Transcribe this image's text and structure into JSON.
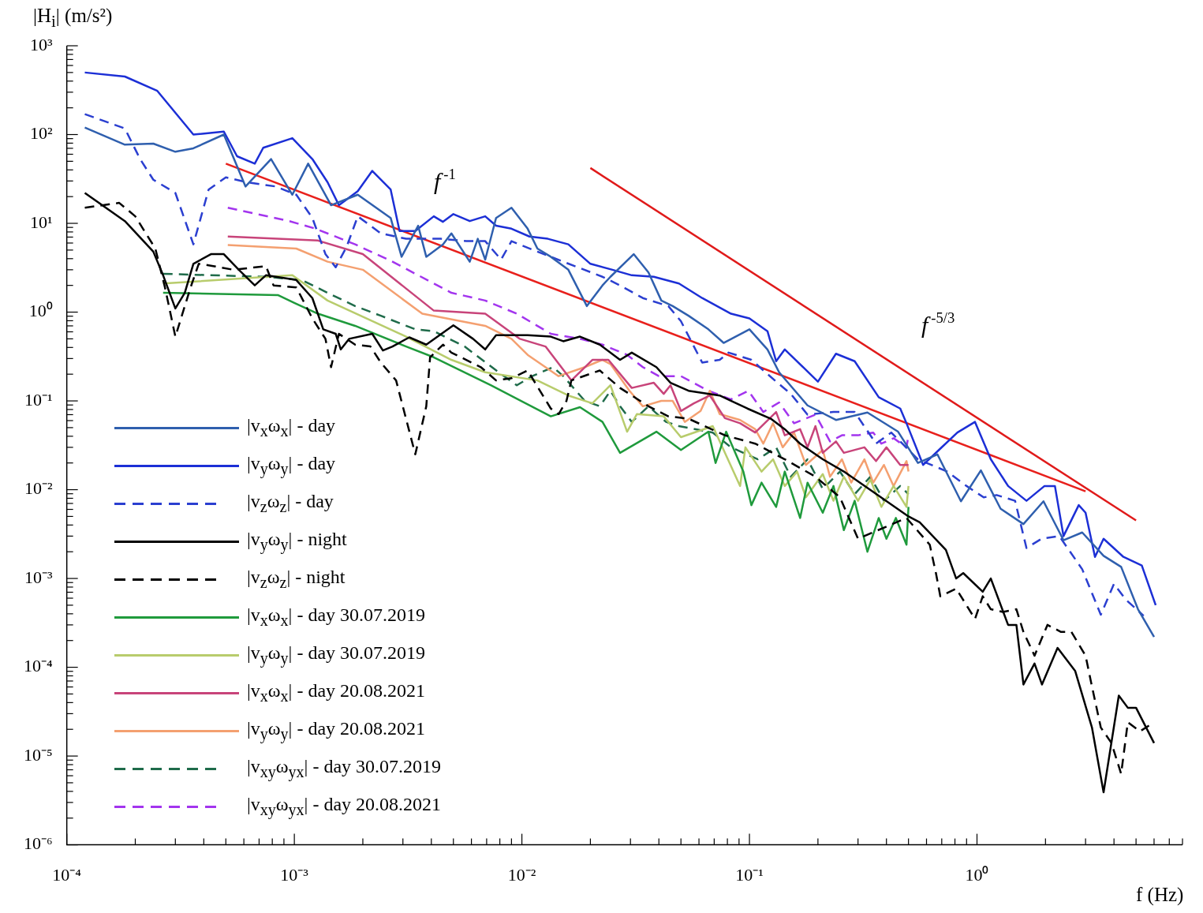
{
  "chart_data": {
    "type": "line",
    "xlabel": "f (Hz)",
    "ylabel": "|H$_{i}$| (m/s²)",
    "log": "xy",
    "legend": "bottom left",
    "xlim": [
      0.0001,
      8
    ],
    "ylim": [
      1e-06,
      1000
    ],
    "xticks": [
      {
        "value": 0.0001,
        "label": "10⁻⁴"
      },
      {
        "value": 0.0002,
        "label": null
      },
      {
        "value": 0.0003,
        "label": null
      },
      {
        "value": 0.0004,
        "label": null
      },
      {
        "value": 0.0005,
        "label": null
      },
      {
        "value": 0.0006,
        "label": null
      },
      {
        "value": 0.0007,
        "label": null
      },
      {
        "value": 0.0008,
        "label": null
      },
      {
        "value": 0.0009,
        "label": null
      },
      {
        "value": 0.001,
        "label": "10⁻³"
      },
      {
        "value": 0.002,
        "label": null
      },
      {
        "value": 0.003,
        "label": null
      },
      {
        "value": 0.004,
        "label": null
      },
      {
        "value": 0.005,
        "label": null
      },
      {
        "value": 0.006,
        "label": null
      },
      {
        "value": 0.007,
        "label": null
      },
      {
        "value": 0.008,
        "label": null
      },
      {
        "value": 0.009,
        "label": null
      },
      {
        "value": 0.01,
        "label": "10⁻²"
      },
      {
        "value": 0.02,
        "label": null
      },
      {
        "value": 0.03,
        "label": null
      },
      {
        "value": 0.04,
        "label": null
      },
      {
        "value": 0.05,
        "label": null
      },
      {
        "value": 0.06,
        "label": null
      },
      {
        "value": 0.07,
        "label": null
      },
      {
        "value": 0.08,
        "label": null
      },
      {
        "value": 0.09,
        "label": null
      },
      {
        "value": 0.1,
        "label": "10⁻¹"
      },
      {
        "value": 0.2,
        "label": null
      },
      {
        "value": 0.3,
        "label": null
      },
      {
        "value": 0.4,
        "label": null
      },
      {
        "value": 0.5,
        "label": null
      },
      {
        "value": 0.6,
        "label": null
      },
      {
        "value": 0.7,
        "label": null
      },
      {
        "value": 0.8,
        "label": null
      },
      {
        "value": 0.9,
        "label": null
      },
      {
        "value": 1,
        "label": "10⁰"
      },
      {
        "value": 2,
        "label": null
      },
      {
        "value": 3,
        "label": null
      },
      {
        "value": 4,
        "label": null
      },
      {
        "value": 5,
        "label": null
      },
      {
        "value": 6,
        "label": null
      },
      {
        "value": 7,
        "label": null
      },
      {
        "value": 8,
        "label": null
      }
    ],
    "yticks": [
      {
        "value": 1e-06,
        "label": "10⁻⁶"
      },
      {
        "value": 2e-06,
        "label": null
      },
      {
        "value": 3e-06,
        "label": null
      },
      {
        "value": 4e-06,
        "label": null
      },
      {
        "value": 5e-06,
        "label": null
      },
      {
        "value": 6e-06,
        "label": null
      },
      {
        "value": 7e-06,
        "label": null
      },
      {
        "value": 8e-06,
        "label": null
      },
      {
        "value": 9e-06,
        "label": null
      },
      {
        "value": 1e-05,
        "label": "10⁻⁵"
      },
      {
        "value": 2e-05,
        "label": null
      },
      {
        "value": 3e-05,
        "label": null
      },
      {
        "value": 4e-05,
        "label": null
      },
      {
        "value": 5e-05,
        "label": null
      },
      {
        "value": 6e-05,
        "label": null
      },
      {
        "value": 7e-05,
        "label": null
      },
      {
        "value": 8e-05,
        "label": null
      },
      {
        "value": 9e-05,
        "label": null
      },
      {
        "value": 0.0001,
        "label": "10⁻⁴"
      },
      {
        "value": 0.0002,
        "label": null
      },
      {
        "value": 0.0003,
        "label": null
      },
      {
        "value": 0.0004,
        "label": null
      },
      {
        "value": 0.0005,
        "label": null
      },
      {
        "value": 0.0006,
        "label": null
      },
      {
        "value": 0.0007,
        "label": null
      },
      {
        "value": 0.0008,
        "label": null
      },
      {
        "value": 0.0009,
        "label": null
      },
      {
        "value": 0.001,
        "label": "10⁻³"
      },
      {
        "value": 0.002,
        "label": null
      },
      {
        "value": 0.003,
        "label": null
      },
      {
        "value": 0.004,
        "label": null
      },
      {
        "value": 0.005,
        "label": null
      },
      {
        "value": 0.006,
        "label": null
      },
      {
        "value": 0.007,
        "label": null
      },
      {
        "value": 0.008,
        "label": null
      },
      {
        "value": 0.009,
        "label": null
      },
      {
        "value": 0.01,
        "label": "10⁻²"
      },
      {
        "value": 0.02,
        "label": null
      },
      {
        "value": 0.03,
        "label": null
      },
      {
        "value": 0.04,
        "label": null
      },
      {
        "value": 0.05,
        "label": null
      },
      {
        "value": 0.06,
        "label": null
      },
      {
        "value": 0.07,
        "label": null
      },
      {
        "value": 0.08,
        "label": null
      },
      {
        "value": 0.09,
        "label": null
      },
      {
        "value": 0.1,
        "label": "10⁻¹"
      },
      {
        "value": 0.2,
        "label": null
      },
      {
        "value": 0.3,
        "label": null
      },
      {
        "value": 0.4,
        "label": null
      },
      {
        "value": 0.5,
        "label": null
      },
      {
        "value": 0.6,
        "label": null
      },
      {
        "value": 0.7,
        "label": null
      },
      {
        "value": 0.8,
        "label": null
      },
      {
        "value": 0.9,
        "label": null
      },
      {
        "value": 1,
        "label": "10⁰"
      },
      {
        "value": 2,
        "label": null
      },
      {
        "value": 3,
        "label": null
      },
      {
        "value": 4,
        "label": null
      },
      {
        "value": 5,
        "label": null
      },
      {
        "value": 6,
        "label": null
      },
      {
        "value": 7,
        "label": null
      },
      {
        "value": 8,
        "label": null
      },
      {
        "value": 9,
        "label": null
      },
      {
        "value": 10,
        "label": "10¹"
      },
      {
        "value": 20,
        "label": null
      },
      {
        "value": 30,
        "label": null
      },
      {
        "value": 40,
        "label": null
      },
      {
        "value": 50,
        "label": null
      },
      {
        "value": 60,
        "label": null
      },
      {
        "value": 70,
        "label": null
      },
      {
        "value": 80,
        "label": null
      },
      {
        "value": 90,
        "label": null
      },
      {
        "value": 100,
        "label": "10²"
      },
      {
        "value": 200,
        "label": null
      },
      {
        "value": 300,
        "label": null
      },
      {
        "value": 400,
        "label": null
      },
      {
        "value": 500,
        "label": null
      },
      {
        "value": 600,
        "label": null
      },
      {
        "value": 700,
        "label": null
      },
      {
        "value": 800,
        "label": null
      },
      {
        "value": 900,
        "label": null
      },
      {
        "value": 1000,
        "label": "10³"
      }
    ],
    "annotations": [
      "f$^{-1}$",
      "f$^{-5/3}$"
    ],
    "series": [
      {
        "name": "|v$_{x}$ω$_{x}$| - day",
        "color": "#2f5fae",
        "x": [
          0.00012,
          0.00018,
          0.00024,
          0.0003,
          0.00036,
          0.00049,
          0.00061,
          0.00079,
          0.00098,
          0.00115,
          0.00145,
          0.0019,
          0.00265,
          0.00296,
          0.0035,
          0.0038,
          0.0045,
          0.0049,
          0.0059,
          0.0064,
          0.0069,
          0.0077,
          0.009,
          0.0106,
          0.0117,
          0.0134,
          0.016,
          0.0193,
          0.0226,
          0.0245,
          0.031,
          0.036,
          0.041,
          0.046,
          0.054,
          0.066,
          0.077,
          0.1,
          0.12,
          0.135,
          0.18,
          0.24,
          0.33,
          0.45,
          0.55,
          0.67,
          0.85,
          1.04,
          1.27,
          1.6,
          1.96,
          2.4,
          2.9,
          3.6,
          4.3,
          5.1,
          6.0
        ],
        "values": [
          120,
          77,
          79,
          64,
          70,
          100,
          26,
          53,
          21,
          47,
          16,
          21,
          11.5,
          4.2,
          9.4,
          4.2,
          5.8,
          7.7,
          3.7,
          6.7,
          3.9,
          11.5,
          15,
          8.7,
          5.2,
          4.2,
          3.0,
          1.17,
          2.0,
          2.5,
          4.5,
          2.8,
          1.35,
          1.17,
          0.91,
          0.64,
          0.45,
          0.64,
          0.38,
          0.21,
          0.089,
          0.061,
          0.074,
          0.045,
          0.02,
          0.025,
          0.0074,
          0.0165,
          0.0061,
          0.0041,
          0.0074,
          0.0027,
          0.0033,
          0.0018,
          0.00135,
          0.00045,
          0.00022
        ]
      },
      {
        "name": "|v$_{y}$ω$_{y}$| - day",
        "color": "#1c2fd6",
        "x": [
          0.00012,
          0.00018,
          0.00025,
          0.00036,
          0.00049,
          0.00056,
          0.00067,
          0.00073,
          0.00098,
          0.0012,
          0.0014,
          0.00157,
          0.0019,
          0.0022,
          0.00265,
          0.0029,
          0.0034,
          0.0041,
          0.0045,
          0.005,
          0.0059,
          0.0069,
          0.0077,
          0.009,
          0.0108,
          0.013,
          0.016,
          0.02,
          0.025,
          0.0304,
          0.038,
          0.049,
          0.062,
          0.083,
          0.1,
          0.12,
          0.131,
          0.143,
          0.2,
          0.24,
          0.29,
          0.37,
          0.46,
          0.49,
          0.58,
          0.68,
          0.82,
          0.98,
          1.15,
          1.37,
          1.65,
          1.98,
          2.2,
          2.4,
          2.8,
          3.0,
          3.3,
          3.6,
          4.4,
          5.3,
          6.1
        ],
        "values": [
          500,
          450,
          310,
          100,
          108,
          57,
          47,
          71,
          91,
          53,
          29,
          16,
          23,
          39,
          24,
          8.2,
          8.2,
          12,
          10.4,
          12.7,
          10.6,
          12,
          9.4,
          8.7,
          7.1,
          6.7,
          5.8,
          3.5,
          3.0,
          2.6,
          2.5,
          2.1,
          1.44,
          0.96,
          0.85,
          0.61,
          0.28,
          0.38,
          0.165,
          0.34,
          0.28,
          0.11,
          0.082,
          0.056,
          0.019,
          0.028,
          0.044,
          0.058,
          0.022,
          0.011,
          0.0075,
          0.011,
          0.011,
          0.003,
          0.0067,
          0.0055,
          0.00175,
          0.0028,
          0.00175,
          0.0014,
          0.0005
        ]
      },
      {
        "name": "|v$_{z}$ω$_{z}$| - day",
        "color": "#2b3fd0",
        "line_style": "dashed",
        "x": [
          0.00012,
          0.00018,
          0.00021,
          0.00024,
          0.0003,
          0.00036,
          0.00042,
          0.0005,
          0.00062,
          0.00083,
          0.00102,
          0.0012,
          0.00137,
          0.00152,
          0.0017,
          0.0019,
          0.0024,
          0.0031,
          0.0044,
          0.0057,
          0.0069,
          0.0081,
          0.009,
          0.0117,
          0.0152,
          0.0226,
          0.027,
          0.034,
          0.044,
          0.05,
          0.062,
          0.074,
          0.081,
          0.102,
          0.131,
          0.152,
          0.18,
          0.234,
          0.29,
          0.36,
          0.42,
          0.55,
          0.74,
          0.9,
          1.07,
          1.22,
          1.47,
          1.65,
          1.92,
          2.3,
          2.9,
          3.5,
          4.0,
          4.5,
          5.4
        ],
        "values": [
          170,
          117,
          53,
          31,
          22,
          5.8,
          24,
          33,
          29,
          26,
          21,
          11.5,
          4.5,
          3.2,
          5.5,
          12,
          7.7,
          6.7,
          6.7,
          6.3,
          6.3,
          3.9,
          6.3,
          4.8,
          3.7,
          2.5,
          2.0,
          1.44,
          1.17,
          0.79,
          0.27,
          0.29,
          0.35,
          0.29,
          0.165,
          0.12,
          0.07,
          0.075,
          0.075,
          0.033,
          0.044,
          0.022,
          0.016,
          0.011,
          0.0082,
          0.0087,
          0.0075,
          0.0022,
          0.0028,
          0.003,
          0.00127,
          0.00039,
          0.00087,
          0.00058,
          0.00038
        ]
      },
      {
        "name": "|v$_{y}$ω$_{y}$| - night",
        "color": "#000000",
        "x": [
          0.00012,
          0.00018,
          0.00024,
          0.000265,
          0.0003,
          0.00033,
          0.00036,
          0.00043,
          0.00049,
          0.00057,
          0.00067,
          0.00075,
          0.00102,
          0.0012,
          0.00134,
          0.00152,
          0.0016,
          0.00174,
          0.0022,
          0.00245,
          0.0027,
          0.0032,
          0.0038,
          0.005,
          0.0061,
          0.0069,
          0.0077,
          0.0106,
          0.0134,
          0.0152,
          0.018,
          0.022,
          0.027,
          0.0304,
          0.039,
          0.045,
          0.054,
          0.074,
          0.098,
          0.124,
          0.143,
          0.167,
          0.21,
          0.26,
          0.5,
          0.56,
          0.73,
          0.81,
          0.87,
          1.06,
          1.15,
          1.37,
          1.49,
          1.6,
          1.79,
          1.93,
          2.26,
          2.7,
          3.2,
          3.6,
          4.2,
          4.6,
          5.0,
          6.0
        ],
        "values": [
          22,
          10.6,
          4.8,
          2.6,
          1.1,
          1.65,
          3.5,
          4.5,
          4.5,
          3.0,
          2.0,
          2.6,
          2.3,
          1.44,
          0.64,
          0.57,
          0.38,
          0.5,
          0.57,
          0.37,
          0.41,
          0.52,
          0.43,
          0.71,
          0.5,
          0.38,
          0.55,
          0.55,
          0.53,
          0.47,
          0.53,
          0.43,
          0.29,
          0.35,
          0.24,
          0.16,
          0.13,
          0.115,
          0.082,
          0.063,
          0.048,
          0.033,
          0.022,
          0.016,
          0.005,
          0.0043,
          0.0021,
          0.001,
          0.00115,
          0.00071,
          0.001,
          0.0003,
          0.0003,
          6.4e-05,
          0.00011,
          6.4e-05,
          0.000165,
          9.1e-05,
          2.1e-05,
          3.9e-06,
          4.8e-05,
          3.5e-05,
          3.5e-05,
          1.4e-05
        ]
      },
      {
        "name": "|v$_{z}$ω$_{z}$| - night",
        "color": "#000000",
        "line_style": "dashed",
        "x": [
          0.00012,
          0.00017,
          0.0002,
          0.000245,
          0.00027,
          0.0003,
          0.00035,
          0.00038,
          0.00044,
          0.00054,
          0.00075,
          0.00081,
          0.00102,
          0.0012,
          0.00137,
          0.00145,
          0.00157,
          0.00185,
          0.00216,
          0.0024,
          0.0028,
          0.0034,
          0.0038,
          0.00395,
          0.0045,
          0.0049,
          0.0066,
          0.0077,
          0.009,
          0.0106,
          0.0134,
          0.0145,
          0.0157,
          0.0165,
          0.022,
          0.027,
          0.036,
          0.044,
          0.054,
          0.078,
          0.106,
          0.143,
          0.195,
          0.25,
          0.3,
          0.49,
          0.62,
          0.66,
          0.69,
          0.81,
          0.98,
          1.06,
          1.15,
          1.3,
          1.49,
          1.6,
          1.79,
          2.04,
          2.34,
          2.6,
          3.0,
          3.2,
          3.5,
          3.9,
          4.3,
          4.6,
          5.2,
          5.7
        ],
        "values": [
          15,
          17,
          12,
          5.2,
          1.9,
          0.53,
          1.9,
          3.5,
          3.3,
          3.0,
          3.3,
          2.0,
          1.9,
          0.85,
          0.5,
          0.24,
          0.57,
          0.43,
          0.41,
          0.27,
          0.17,
          0.025,
          0.087,
          0.31,
          0.43,
          0.35,
          0.24,
          0.17,
          0.18,
          0.22,
          0.082,
          0.071,
          0.1,
          0.17,
          0.22,
          0.14,
          0.087,
          0.067,
          0.063,
          0.041,
          0.033,
          0.022,
          0.014,
          0.0082,
          0.0028,
          0.0048,
          0.0024,
          0.00115,
          0.00063,
          0.00077,
          0.00035,
          0.00063,
          0.00045,
          0.00042,
          0.00045,
          0.00025,
          0.000135,
          0.0003,
          0.00025,
          0.00025,
          0.000135,
          6.1e-05,
          2.1e-05,
          1.4e-05,
          6.3e-06,
          2.4e-05,
          1.9e-05,
          2.2e-05
        ]
      },
      {
        "name": "|v$_{x}$ω$_{x}$| - day 30.07.2019",
        "color": "#1f9a3c",
        "x": [
          0.000265,
          0.00085,
          0.001,
          0.00127,
          0.00185,
          0.0031,
          0.0041,
          0.0073,
          0.0134,
          0.018,
          0.0226,
          0.027,
          0.039,
          0.05,
          0.066,
          0.071,
          0.079,
          0.094,
          0.102,
          0.113,
          0.131,
          0.143,
          0.167,
          0.18,
          0.21,
          0.234,
          0.26,
          0.29,
          0.33,
          0.37,
          0.4,
          0.44,
          0.49,
          0.5
        ],
        "values": [
          1.65,
          1.55,
          1.27,
          0.96,
          0.7,
          0.41,
          0.31,
          0.15,
          0.067,
          0.085,
          0.058,
          0.026,
          0.045,
          0.028,
          0.045,
          0.02,
          0.045,
          0.016,
          0.0067,
          0.012,
          0.0064,
          0.016,
          0.0048,
          0.012,
          0.0055,
          0.011,
          0.0035,
          0.0075,
          0.002,
          0.0048,
          0.0028,
          0.0048,
          0.0024,
          0.0064
        ]
      },
      {
        "name": "|v$_{y}$ω$_{y}$| - day 30.07.2019",
        "color": "#b8cc6c",
        "x": [
          0.000265,
          0.00098,
          0.0014,
          0.0031,
          0.0049,
          0.0069,
          0.0117,
          0.016,
          0.0204,
          0.0245,
          0.029,
          0.032,
          0.042,
          0.05,
          0.069,
          0.091,
          0.096,
          0.113,
          0.127,
          0.143,
          0.162,
          0.177,
          0.21,
          0.234,
          0.26,
          0.3,
          0.34,
          0.38,
          0.43,
          0.49,
          0.5
        ],
        "values": [
          2.1,
          2.6,
          1.35,
          0.53,
          0.29,
          0.21,
          0.17,
          0.115,
          0.094,
          0.15,
          0.045,
          0.071,
          0.067,
          0.039,
          0.052,
          0.011,
          0.03,
          0.016,
          0.022,
          0.011,
          0.016,
          0.0082,
          0.015,
          0.0075,
          0.014,
          0.0075,
          0.013,
          0.0064,
          0.011,
          0.0064,
          0.011
        ]
      },
      {
        "name": "|v$_{x}$ω$_{x}$| - day 20.08.2021",
        "color": "#c8447a",
        "x": [
          0.00051,
          0.00127,
          0.002,
          0.0041,
          0.0069,
          0.0098,
          0.0127,
          0.0165,
          0.0204,
          0.024,
          0.0304,
          0.038,
          0.042,
          0.045,
          0.05,
          0.057,
          0.067,
          0.078,
          0.091,
          0.106,
          0.131,
          0.143,
          0.167,
          0.18,
          0.195,
          0.21,
          0.24,
          0.26,
          0.32,
          0.36,
          0.4,
          0.46,
          0.5
        ],
        "values": [
          7.1,
          6.4,
          4.5,
          1.04,
          0.96,
          0.5,
          0.41,
          0.17,
          0.29,
          0.29,
          0.14,
          0.16,
          0.12,
          0.15,
          0.077,
          0.094,
          0.115,
          0.064,
          0.056,
          0.044,
          0.075,
          0.041,
          0.048,
          0.03,
          0.052,
          0.026,
          0.035,
          0.026,
          0.03,
          0.021,
          0.03,
          0.019,
          0.019
        ]
      },
      {
        "name": "|v$_{y}$ω$_{y}$| - day 20.08.2021",
        "color": "#f4a070",
        "x": [
          0.00051,
          0.00102,
          0.0014,
          0.002,
          0.00365,
          0.0069,
          0.009,
          0.0106,
          0.0145,
          0.0189,
          0.0226,
          0.0245,
          0.0297,
          0.034,
          0.041,
          0.046,
          0.052,
          0.061,
          0.067,
          0.074,
          0.091,
          0.106,
          0.115,
          0.127,
          0.14,
          0.157,
          0.177,
          0.21,
          0.226,
          0.255,
          0.28,
          0.32,
          0.35,
          0.39,
          0.43,
          0.49,
          0.5
        ],
        "values": [
          5.7,
          5.2,
          3.7,
          3.0,
          0.96,
          0.7,
          0.5,
          0.33,
          0.19,
          0.24,
          0.29,
          0.26,
          0.13,
          0.087,
          0.1,
          0.1,
          0.058,
          0.077,
          0.13,
          0.071,
          0.061,
          0.048,
          0.033,
          0.056,
          0.03,
          0.044,
          0.019,
          0.028,
          0.014,
          0.022,
          0.012,
          0.022,
          0.012,
          0.019,
          0.011,
          0.021,
          0.016
        ]
      },
      {
        "name": "|v$_{xy}$ω$_{yx}$| - day 30.07.2019",
        "color": "#1f6b4a",
        "line_style": "dashed",
        "x": [
          0.000265,
          0.00075,
          0.00108,
          0.0014,
          0.00185,
          0.0024,
          0.0034,
          0.0041,
          0.0056,
          0.0079,
          0.0095,
          0.0111,
          0.0137,
          0.0152,
          0.0189,
          0.022,
          0.0245,
          0.027,
          0.0304,
          0.036,
          0.043,
          0.049,
          0.069,
          0.083,
          0.109,
          0.131,
          0.152,
          0.18,
          0.21,
          0.25,
          0.29,
          0.34,
          0.39,
          0.46,
          0.5
        ],
        "values": [
          2.7,
          2.5,
          2.3,
          1.65,
          1.17,
          0.91,
          0.64,
          0.61,
          0.41,
          0.21,
          0.15,
          0.19,
          0.24,
          0.19,
          0.1,
          0.087,
          0.13,
          0.087,
          0.058,
          0.087,
          0.058,
          0.052,
          0.044,
          0.03,
          0.022,
          0.03,
          0.014,
          0.022,
          0.0102,
          0.016,
          0.0089,
          0.014,
          0.0075,
          0.011,
          0.0089
        ]
      },
      {
        "name": "|v$_{xy}$ω$_{yx}$| - day 20.08.2021",
        "color": "#a335ee",
        "line_style": "dashed",
        "x": [
          0.00051,
          0.00095,
          0.00124,
          0.00185,
          0.0027,
          0.0049,
          0.0069,
          0.0095,
          0.0134,
          0.018,
          0.0226,
          0.029,
          0.034,
          0.04,
          0.05,
          0.066,
          0.083,
          0.099,
          0.115,
          0.135,
          0.157,
          0.195,
          0.226,
          0.255,
          0.3,
          0.35,
          0.38,
          0.43,
          0.49,
          0.5
        ],
        "values": [
          15,
          10.6,
          8.7,
          5.8,
          3.7,
          1.65,
          1.35,
          0.96,
          0.57,
          0.5,
          0.43,
          0.33,
          0.24,
          0.19,
          0.19,
          0.13,
          0.104,
          0.13,
          0.075,
          0.096,
          0.056,
          0.07,
          0.035,
          0.041,
          0.041,
          0.044,
          0.033,
          0.038,
          0.03,
          0.041
        ]
      },
      {
        "type": "line",
        "color": "#e8201c",
        "x": [
          0.0005,
          3
        ],
        "values": [
          47,
          0.0096
        ]
      },
      {
        "type": "line",
        "color": "#e01a1a",
        "x": [
          0.02,
          5
        ],
        "values": [
          42,
          0.0045
        ]
      }
    ]
  }
}
